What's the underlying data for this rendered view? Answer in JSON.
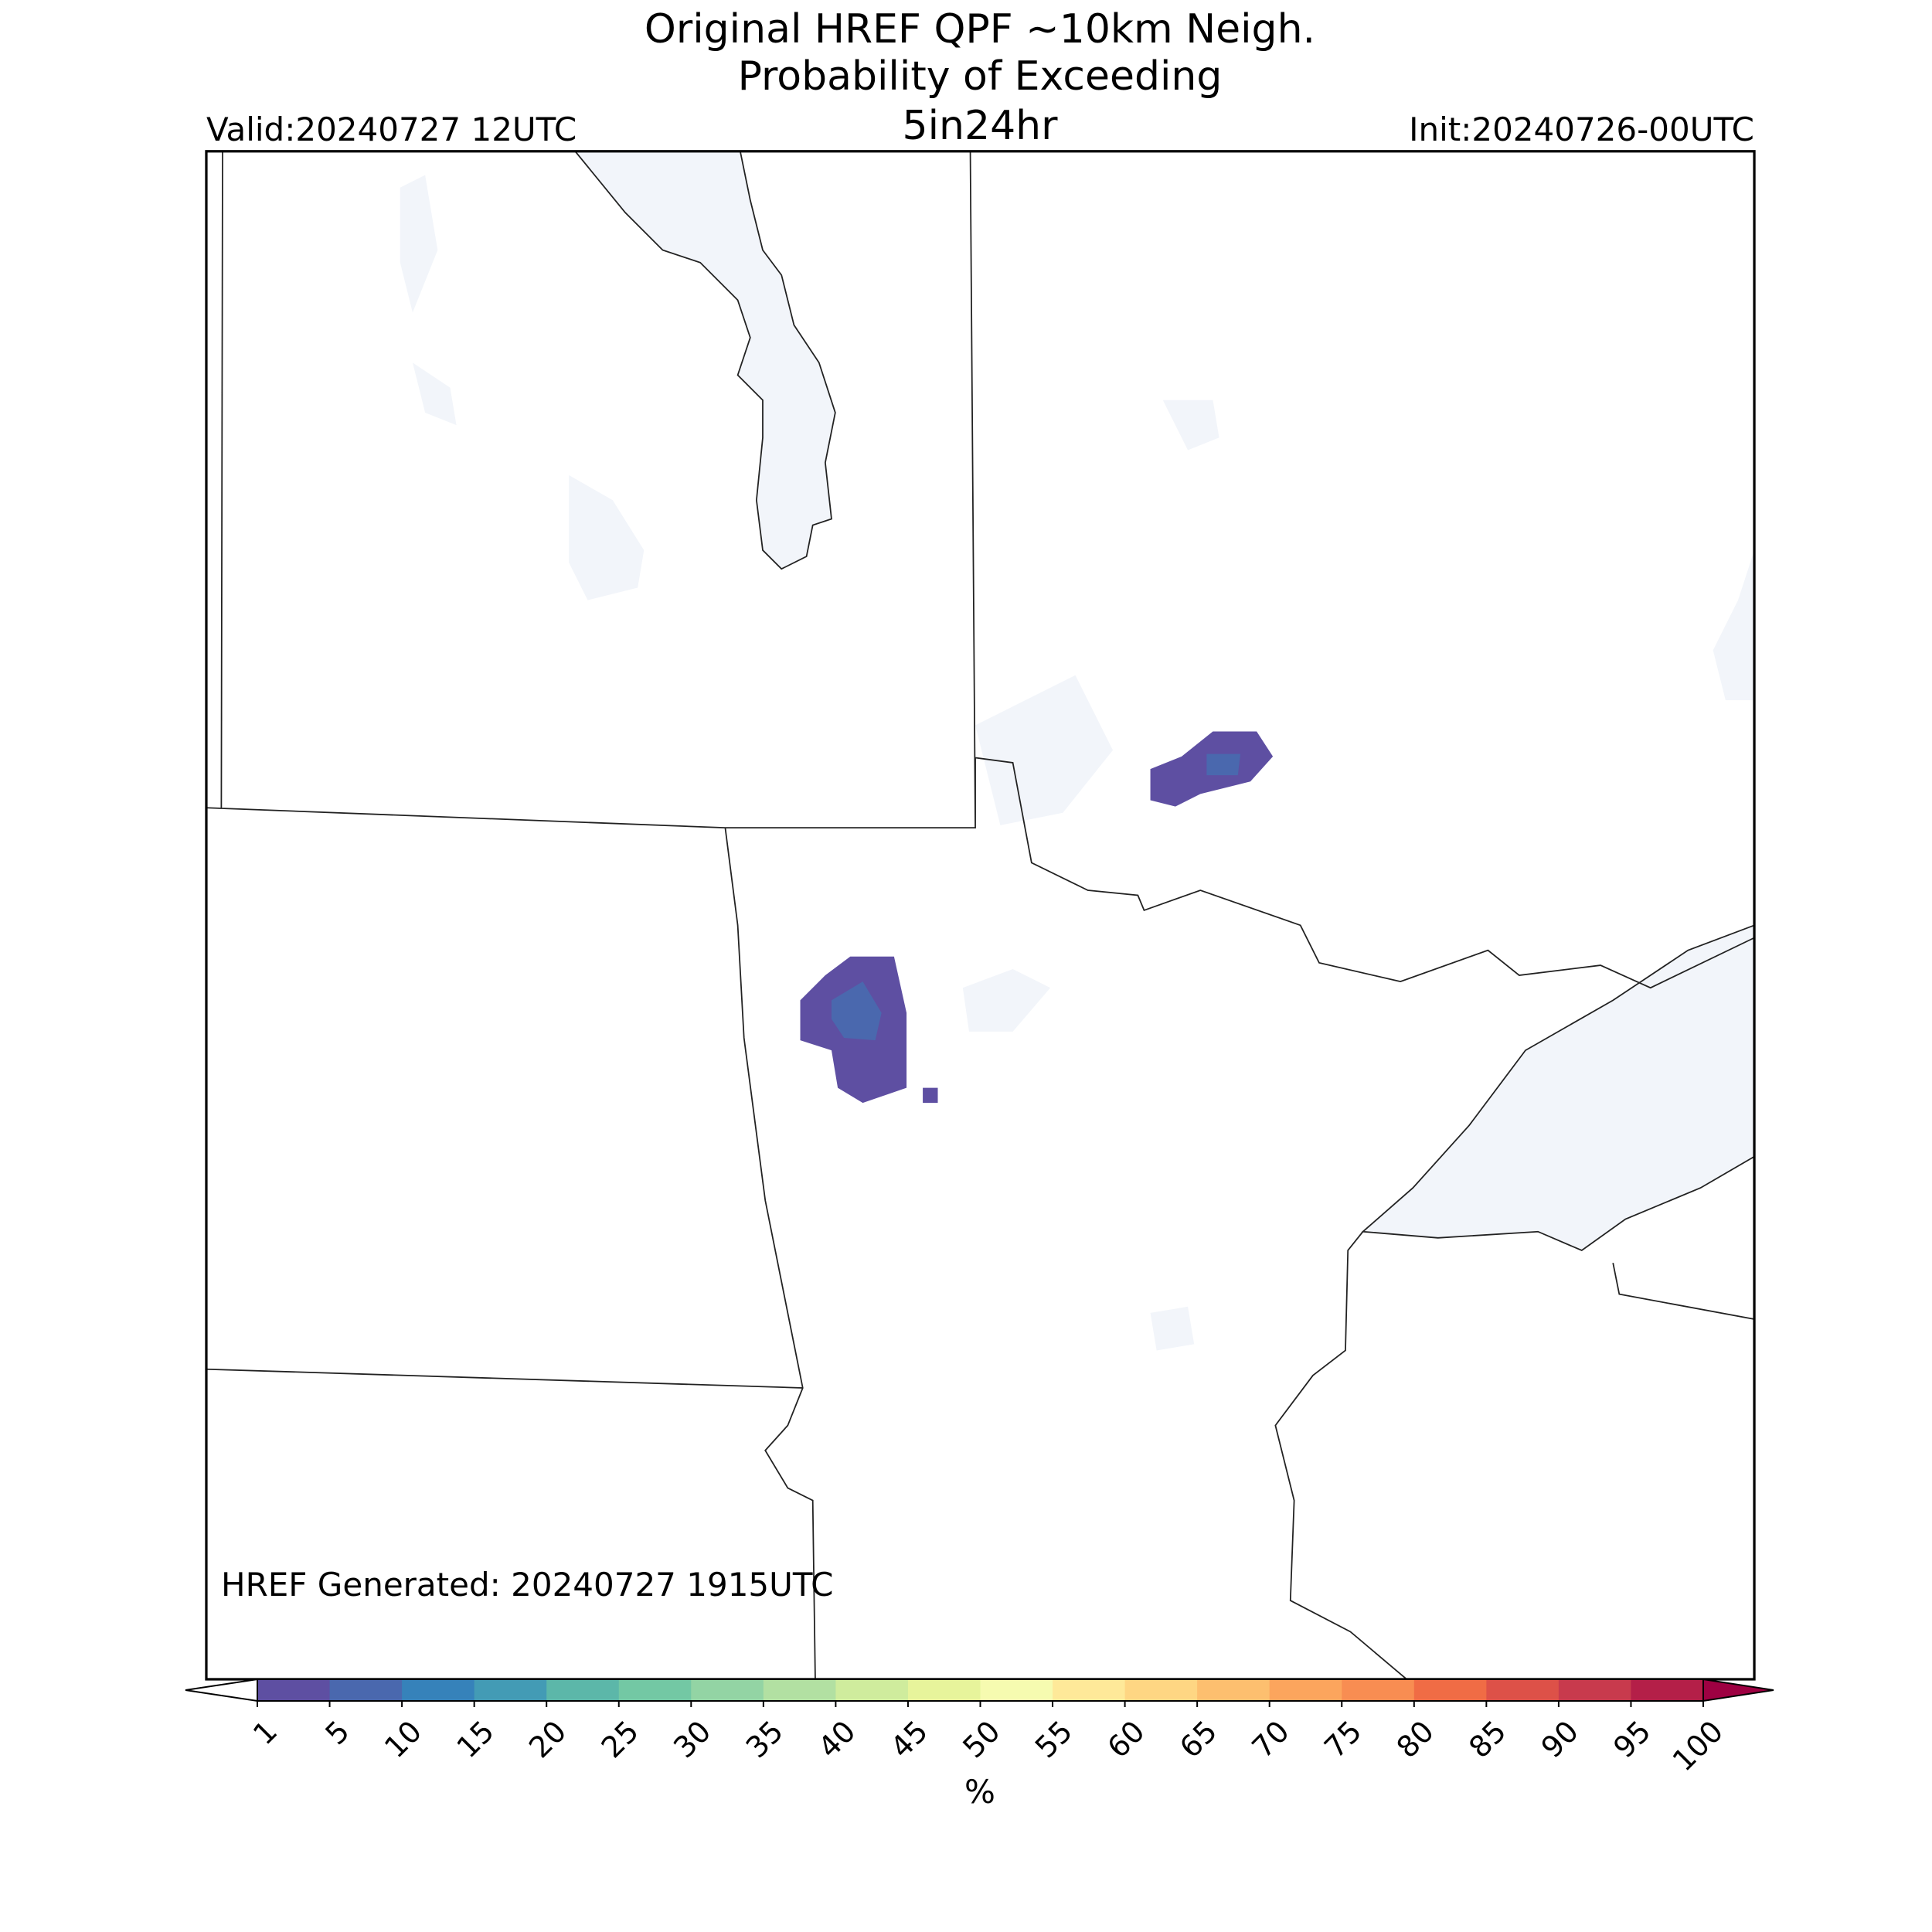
{
  "title": [
    "Original HREF QPF ~10km Neigh.",
    "Probability of Exceeding",
    "5in24hr"
  ],
  "valid": "Valid:20240727 12UTC",
  "init": "Init:20240726-00UTC",
  "generated": "HREF Generated: 20240727 1915UTC",
  "colorbar": {
    "ticks": [
      1,
      5,
      10,
      15,
      20,
      25,
      30,
      35,
      40,
      45,
      50,
      55,
      60,
      65,
      70,
      75,
      80,
      85,
      90,
      95,
      100
    ],
    "colors": [
      "#5e4fa2",
      "#4a68ae",
      "#3682ba",
      "#439bb5",
      "#5cb7a9",
      "#73c8a4",
      "#93d4a4",
      "#b2e0a2",
      "#cfec9d",
      "#e7f49b",
      "#f6fbb0",
      "#fee999",
      "#fed683",
      "#fdbf6f",
      "#fca55d",
      "#f88d52",
      "#f06c45",
      "#dd5148",
      "#c83a4d",
      "#b41f48"
    ],
    "under_color": "#ffffff",
    "over_color": "#9e0142",
    "label": "%"
  }
}
